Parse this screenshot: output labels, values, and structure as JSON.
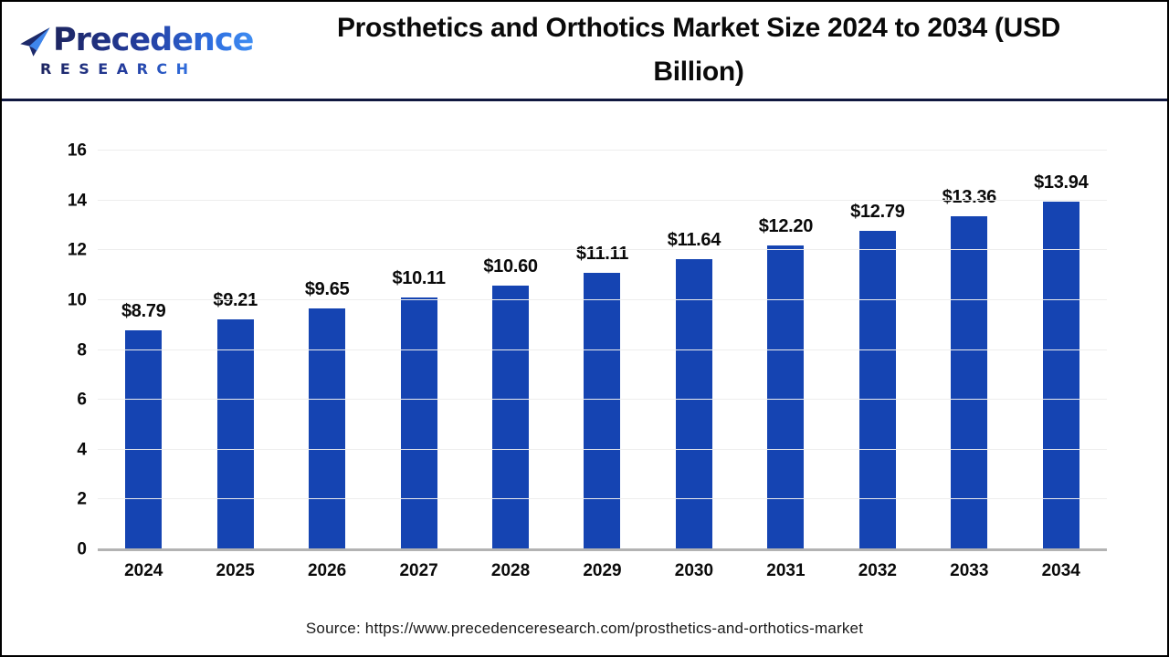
{
  "logo": {
    "name": "Precedence",
    "subtitle": "RESEARCH"
  },
  "header": {
    "title": "Prosthetics and Orthotics Market Size 2024 to 2034 (USD Billion)"
  },
  "footer": {
    "source": "Source: https://www.precedenceresearch.com/prosthetics-and-orthotics-market"
  },
  "chart_data": {
    "type": "bar",
    "title": "Prosthetics and Orthotics Market Size 2024 to 2034 (USD Billion)",
    "categories": [
      "2024",
      "2025",
      "2026",
      "2027",
      "2028",
      "2029",
      "2030",
      "2031",
      "2032",
      "2033",
      "2034"
    ],
    "values": [
      8.79,
      9.21,
      9.65,
      10.11,
      10.6,
      11.11,
      11.64,
      12.2,
      12.79,
      13.36,
      13.94
    ],
    "value_labels": [
      "$8.79",
      "$9.21",
      "$9.65",
      "$10.11",
      "$10.60",
      "$11.11",
      "$11.64",
      "$12.20",
      "$12.79",
      "$13.36",
      "$13.94"
    ],
    "xlabel": "",
    "ylabel": "",
    "ylim": [
      0,
      16
    ],
    "ytick_step": 2,
    "grid": true,
    "legend": "none",
    "colors": {
      "bar": "#1544b2",
      "gridline": "#ededed",
      "axis_line": "#b3b3b3",
      "label_text": "#0a0a0a"
    }
  }
}
